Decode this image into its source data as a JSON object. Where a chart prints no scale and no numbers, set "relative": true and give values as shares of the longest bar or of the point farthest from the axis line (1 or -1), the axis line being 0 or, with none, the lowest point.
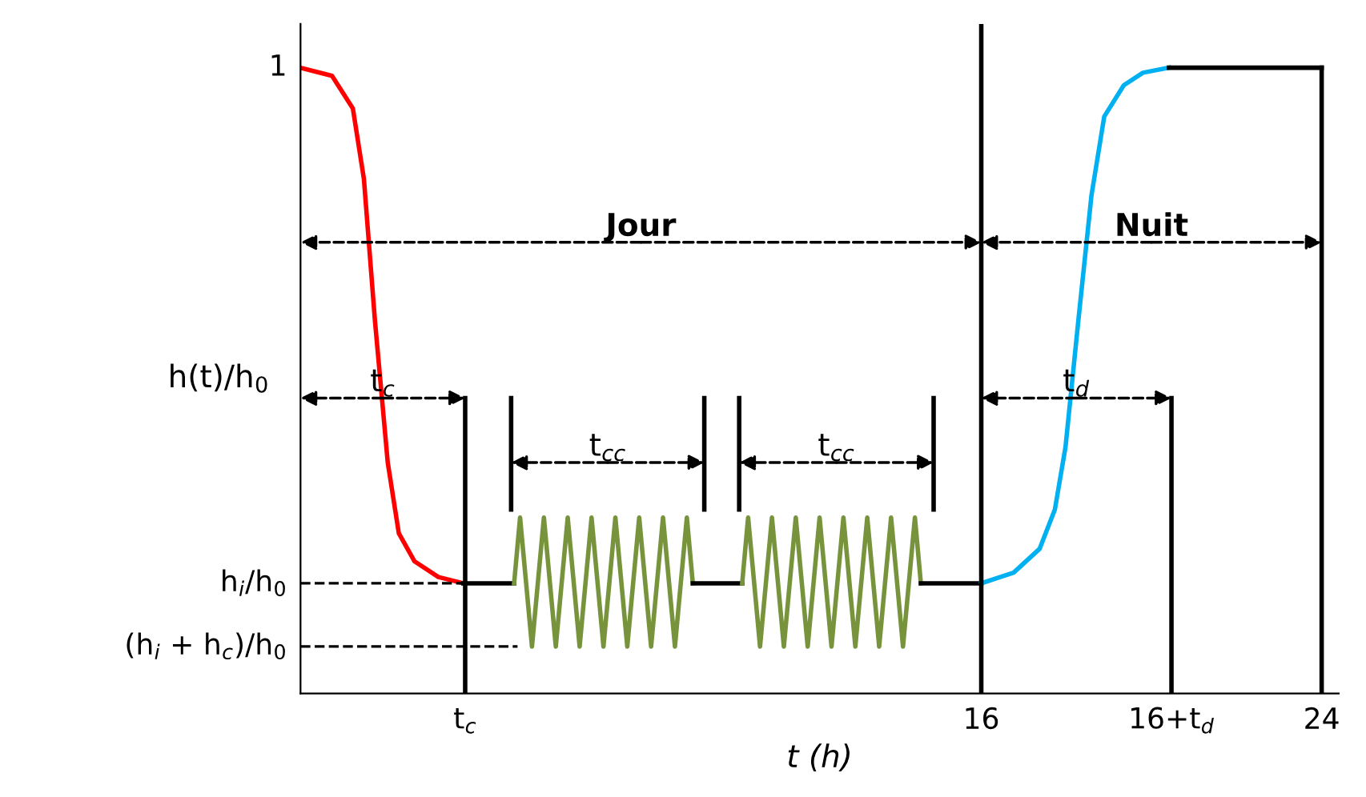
{
  "chart_data": {
    "type": "line",
    "relative": true,
    "tick_labels": "x",
    "xlabel": "t (h)",
    "ylabel": "h(t)/h$_{0}$",
    "xlim": [
      0,
      24.4
    ],
    "xticks": [
      {
        "value": 3.87,
        "label": "t$_{c}$"
      },
      16,
      {
        "value": 20.47,
        "label": "16+t$_{d}$"
      },
      24
    ],
    "ref_lines": [
      {
        "axis": "x",
        "value": 16,
        "color": "#000000"
      }
    ],
    "series": [
      {
        "type": "line",
        "color": "#ff0000",
        "line_style": "solid",
        "x": [
          0,
          0.74,
          1.23,
          1.49,
          1.75,
          2.05,
          2.31,
          2.68,
          3.24,
          3.83
        ],
        "values": [
          1.0,
          0.987,
          0.935,
          0.822,
          0.595,
          0.369,
          0.256,
          0.211,
          0.186,
          0.176
        ]
      },
      {
        "type": "line",
        "color": "#000000",
        "line_style": "solid",
        "x": [
          3.83,
          5.02
        ],
        "values": [
          0.176,
          0.176
        ]
      },
      {
        "type": "line",
        "color": "#77933c",
        "line_style": "solid",
        "x": [
          5.02,
          5.16,
          5.44,
          5.72,
          6.0,
          6.28,
          6.56,
          6.84,
          7.12,
          7.4,
          7.68,
          7.96,
          8.24,
          8.52,
          8.8,
          9.08,
          9.22
        ],
        "values": [
          0.176,
          0.281,
          0.075,
          0.281,
          0.075,
          0.281,
          0.075,
          0.281,
          0.075,
          0.281,
          0.075,
          0.281,
          0.075,
          0.281,
          0.075,
          0.281,
          0.176
        ]
      },
      {
        "type": "line",
        "color": "#000000",
        "line_style": "solid",
        "x": [
          9.22,
          10.38
        ],
        "values": [
          0.176,
          0.176
        ]
      },
      {
        "type": "line",
        "color": "#77933c",
        "line_style": "solid",
        "x": [
          10.38,
          10.52,
          10.8,
          11.08,
          11.36,
          11.64,
          11.92,
          12.2,
          12.48,
          12.76,
          13.04,
          13.32,
          13.6,
          13.88,
          14.16,
          14.44,
          14.58
        ],
        "values": [
          0.176,
          0.281,
          0.075,
          0.281,
          0.075,
          0.281,
          0.075,
          0.281,
          0.075,
          0.281,
          0.075,
          0.281,
          0.075,
          0.281,
          0.075,
          0.281,
          0.176
        ]
      },
      {
        "type": "line",
        "color": "#000000",
        "line_style": "solid",
        "x": [
          14.58,
          16
        ],
        "values": [
          0.176,
          0.176
        ]
      },
      {
        "type": "line",
        "color": "#00b0f0",
        "line_style": "solid",
        "x": [
          16,
          16.76,
          17.37,
          17.73,
          17.98,
          18.28,
          18.59,
          18.89,
          19.35,
          19.8,
          20.41
        ],
        "values": [
          0.176,
          0.193,
          0.231,
          0.294,
          0.394,
          0.595,
          0.796,
          0.922,
          0.972,
          0.992,
          1.0
        ]
      },
      {
        "type": "line",
        "color": "#000000",
        "line_style": "solid",
        "x": [
          20.41,
          24
        ],
        "values": [
          1.0,
          1.0
        ]
      },
      {
        "type": "line",
        "color": "#000000",
        "line_style": "dashed",
        "x": [
          0,
          3.83
        ],
        "values": [
          0.176,
          0.176
        ]
      },
      {
        "type": "line",
        "color": "#000000",
        "line_style": "dashed",
        "x": [
          0,
          5.1
        ],
        "values": [
          0.075,
          0.075
        ]
      },
      {
        "type": "line",
        "color": "#000000",
        "line_style": "solid",
        "x": [
          3.87,
          3.87
        ],
        "values": [
          0,
          0.472
        ]
      },
      {
        "type": "line",
        "color": "#000000",
        "line_style": "solid",
        "x": [
          20.47,
          20.47
        ],
        "values": [
          0,
          0.472
        ]
      },
      {
        "type": "line",
        "color": "#000000",
        "line_style": "solid",
        "x": [
          24,
          24
        ],
        "values": [
          0,
          1.0
        ]
      },
      {
        "type": "line",
        "color": "#000000",
        "line_style": "solid",
        "x": [
          4.95,
          4.95
        ],
        "values": [
          0.294,
          0.472
        ]
      },
      {
        "type": "line",
        "color": "#000000",
        "line_style": "solid",
        "x": [
          9.49,
          9.49
        ],
        "values": [
          0.294,
          0.472
        ]
      },
      {
        "type": "line",
        "color": "#000000",
        "line_style": "solid",
        "x": [
          10.31,
          10.31
        ],
        "values": [
          0.294,
          0.472
        ]
      },
      {
        "type": "line",
        "color": "#000000",
        "line_style": "solid",
        "x": [
          14.88,
          14.88
        ],
        "values": [
          0.294,
          0.472
        ]
      }
    ],
    "annotations": [
      {
        "text": "1",
        "x": 0,
        "y": 1.0
      },
      {
        "text": "h$_{i}$/h$_{0}$",
        "x": 0,
        "y": 0.176
      },
      {
        "text": "(h$_{i}$ + h$_{c}$)/h$_{0}$",
        "x": 0,
        "y": 0.075
      },
      {
        "text": "Jour",
        "x": 16,
        "y": 0.721
      },
      {
        "text": "Nuit",
        "x": 24,
        "y": 0.721
      },
      {
        "text": "t$_{c}$",
        "x": 3.87,
        "y": 0.472
      },
      {
        "text": "t$_{d}$",
        "x": 20.47,
        "y": 0.472
      },
      {
        "text": "t$_{cc}$",
        "x": 9.49,
        "y": 0.369
      },
      {
        "text": "t$_{cc}$",
        "x": 14.88,
        "y": 0.369
      }
    ]
  }
}
